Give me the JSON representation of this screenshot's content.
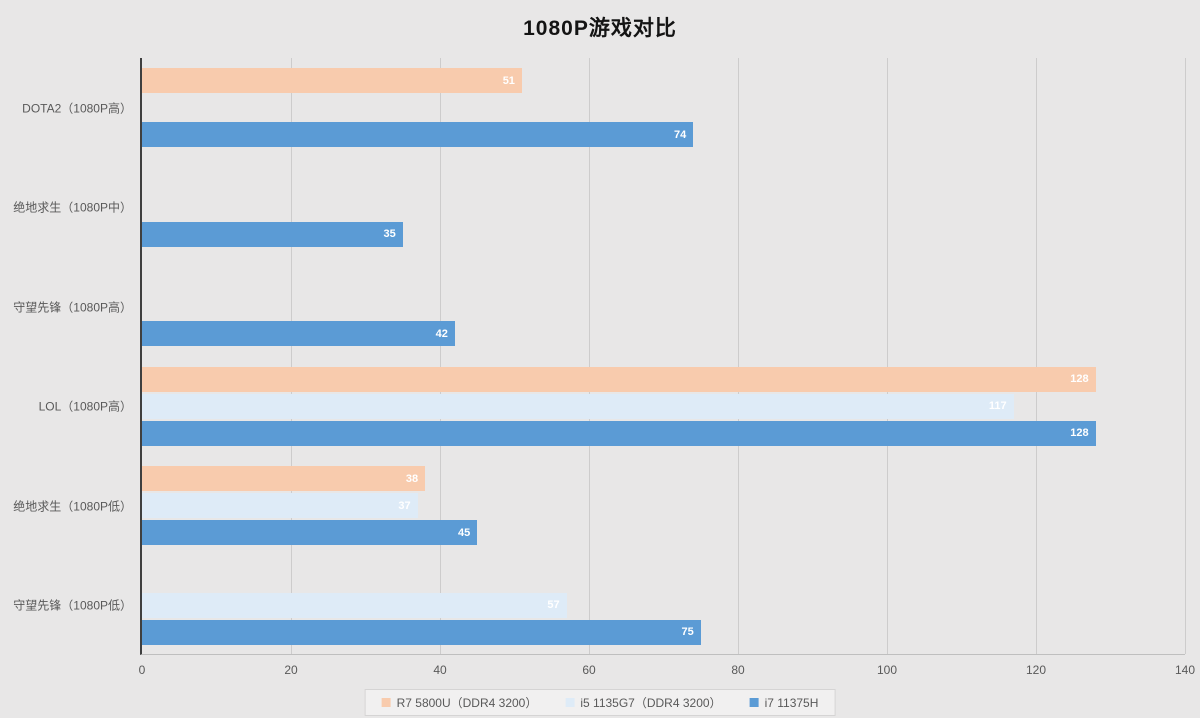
{
  "title": "1080P游戏对比",
  "chart_data": {
    "type": "bar",
    "orientation": "horizontal",
    "title": "1080P游戏对比",
    "categories": [
      "DOTA2（1080P高）",
      "绝地求生（1080P中）",
      "守望先锋（1080P高）",
      "LOL（1080P高）",
      "绝地求生（1080P低）",
      "守望先锋（1080P低）"
    ],
    "series": [
      {
        "name": "R7 5800U（DDR4 3200）",
        "color": "#F8CBAD",
        "values": [
          51,
          null,
          null,
          128,
          38,
          null
        ]
      },
      {
        "name": "i5 1135G7（DDR4 3200）",
        "color": "#DEEBF7",
        "values": [
          null,
          null,
          null,
          117,
          37,
          57
        ]
      },
      {
        "name": "i7 11375H",
        "color": "#5B9BD5",
        "values": [
          74,
          35,
          42,
          128,
          45,
          75
        ]
      }
    ],
    "xlim": [
      0,
      140
    ],
    "xticks": [
      0,
      20,
      40,
      60,
      80,
      100,
      120,
      140
    ],
    "grid": true,
    "legend_position": "bottom",
    "value_labels": "inside-end, white"
  },
  "colors": {
    "background": "#E8E7E7",
    "gridline": "#CDCCCC",
    "axis_line": "#3F3F3F",
    "text": "#595959",
    "title_text": "#141414",
    "value_label": "#FFFFFF",
    "legend_background": "#F1F0F0",
    "legend_border": "#D5D4D4"
  }
}
